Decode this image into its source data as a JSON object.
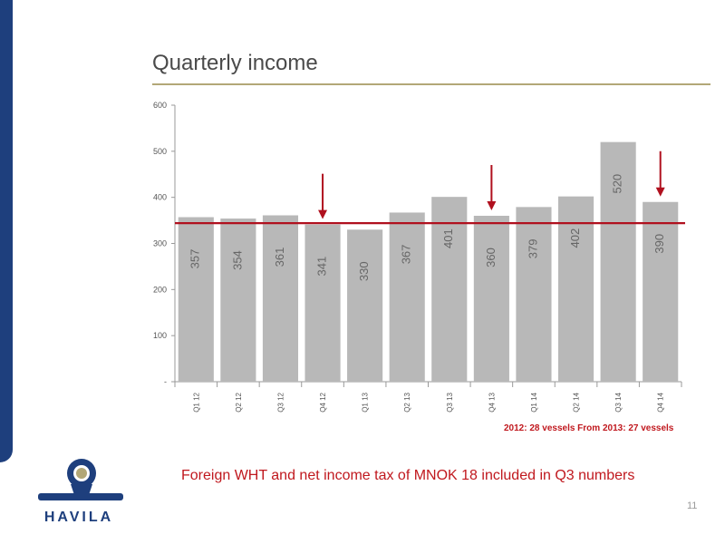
{
  "slide": {
    "title": "Quarterly income",
    "note": "2012: 28 vessels From 2013: 27 vessels",
    "footnote": "Foreign WHT and net income tax of MNOK 18 included in Q3 numbers",
    "page_number": "11",
    "logo_text": "HAVILA",
    "colors": {
      "brand": "#1e3f7d",
      "accent": "#c0181e",
      "bar": "#b8b8b8",
      "rule": "#b2a777"
    }
  },
  "chart_data": {
    "type": "bar",
    "title": "",
    "xlabel": "",
    "ylabel": "",
    "categories": [
      "Q1 12",
      "Q2 12",
      "Q3 12",
      "Q4 12",
      "Q1 13",
      "Q2 13",
      "Q3 13",
      "Q4 13",
      "Q1 14",
      "Q2 14",
      "Q3 14",
      "Q4 14"
    ],
    "values": [
      357,
      354,
      361,
      341,
      330,
      367,
      401,
      360,
      379,
      402,
      520,
      390
    ],
    "ylim": [
      0,
      600
    ],
    "yticks": [
      0,
      100,
      200,
      300,
      400,
      500,
      600
    ],
    "ytick_labels": [
      "-",
      "100",
      "200",
      "300",
      "400",
      "500",
      "600"
    ],
    "grid": false,
    "average_line": 344,
    "highlighted_categories": [
      "Q4 12",
      "Q4 13",
      "Q4 14"
    ]
  }
}
